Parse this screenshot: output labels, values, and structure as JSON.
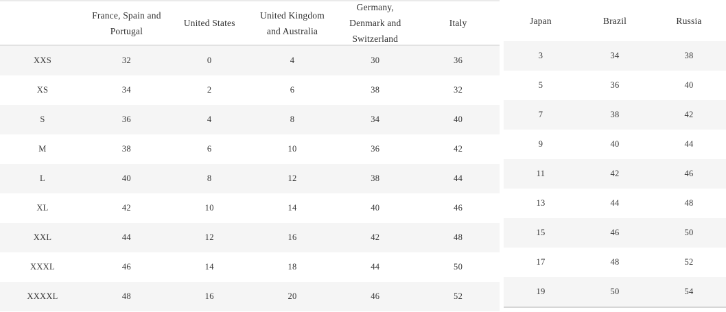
{
  "chart_data": {
    "type": "table",
    "title": "",
    "columns": [
      "",
      "France, Spain and Portugal",
      "United States",
      "United Kingdom and Australia",
      "Germany, Denmark and Switzerland",
      "Italy",
      "Japan",
      "Brazil",
      "Russia"
    ],
    "rows": [
      [
        "XXS",
        32,
        0,
        4,
        30,
        36,
        3,
        34,
        38
      ],
      [
        "XS",
        34,
        2,
        6,
        38,
        32,
        5,
        36,
        40
      ],
      [
        "S",
        36,
        4,
        8,
        34,
        40,
        7,
        38,
        42
      ],
      [
        "M",
        38,
        6,
        10,
        36,
        42,
        9,
        40,
        44
      ],
      [
        "L",
        40,
        8,
        12,
        38,
        44,
        11,
        42,
        46
      ],
      [
        "XL",
        42,
        10,
        14,
        40,
        46,
        13,
        44,
        48
      ],
      [
        "XXL",
        44,
        12,
        16,
        42,
        48,
        15,
        46,
        50
      ],
      [
        "XXXL",
        46,
        14,
        18,
        44,
        50,
        17,
        48,
        52
      ],
      [
        "XXXXL",
        48,
        16,
        20,
        46,
        52,
        19,
        50,
        54
      ]
    ],
    "layout": {
      "split": "columns 1-5 in left table, columns 6-8 in separate right table",
      "striped_rows": "rows 1,3,5,7,9 shaded",
      "grid": "off",
      "header_position": "top"
    }
  },
  "colors": {
    "background": "#ffffff",
    "row_stripe": "#f5f5f5",
    "left_table_top_border": "#eaeaea",
    "left_header_bottom_border": "#e2e2e2",
    "right_table_bottom_border": "#d6d6d6",
    "header_text": "#2f2f2f",
    "cell_text": "#383838"
  }
}
